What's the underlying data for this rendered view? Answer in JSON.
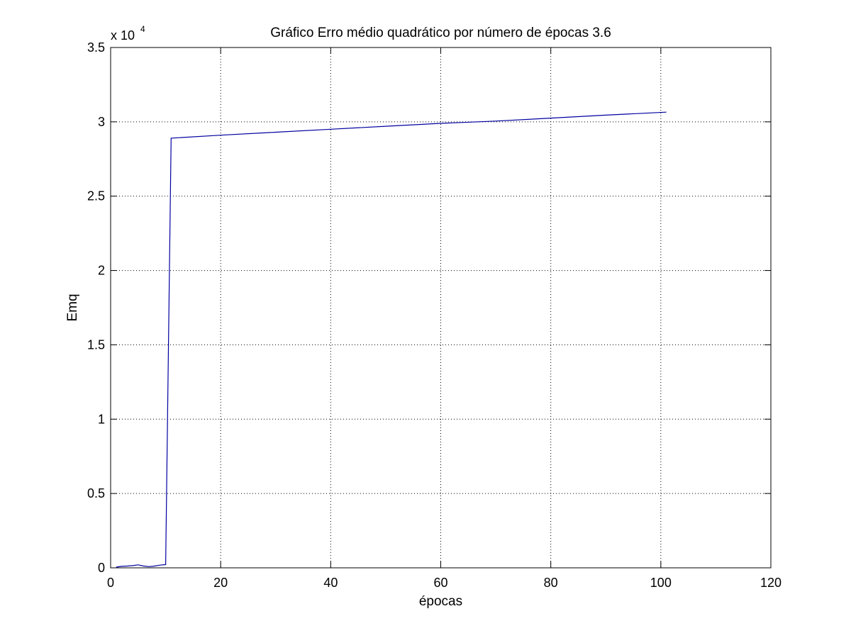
{
  "chart_data": {
    "type": "line",
    "title": "Gráfico Erro médio quadrático por número de épocas 3.6",
    "xlabel": "épocas",
    "ylabel": "Emq",
    "y_exponent_label": "x 10",
    "y_exponent_power": "4",
    "xlim": [
      0,
      120
    ],
    "ylim": [
      0,
      3.5
    ],
    "x_ticks": [
      0,
      20,
      40,
      60,
      80,
      100,
      120
    ],
    "y_ticks": [
      0,
      0.5,
      1,
      1.5,
      2,
      2.5,
      3,
      3.5
    ],
    "x_tick_labels": [
      "0",
      "20",
      "40",
      "60",
      "80",
      "100",
      "120"
    ],
    "y_tick_labels": [
      "0",
      "0.5",
      "1",
      "1.5",
      "2",
      "2.5",
      "3",
      "3.5"
    ],
    "grid": true,
    "series": [
      {
        "color": "#0000a0",
        "x": [
          1,
          2,
          3,
          4,
          5,
          6,
          7,
          8,
          9,
          10,
          11,
          20,
          30,
          40,
          50,
          60,
          70,
          80,
          90,
          101
        ],
        "y": [
          0.005,
          0.01,
          0.012,
          0.015,
          0.02,
          0.012,
          0.008,
          0.012,
          0.018,
          0.022,
          2.89,
          2.91,
          2.93,
          2.95,
          2.97,
          2.99,
          3.005,
          3.025,
          3.045,
          3.065
        ]
      }
    ]
  }
}
